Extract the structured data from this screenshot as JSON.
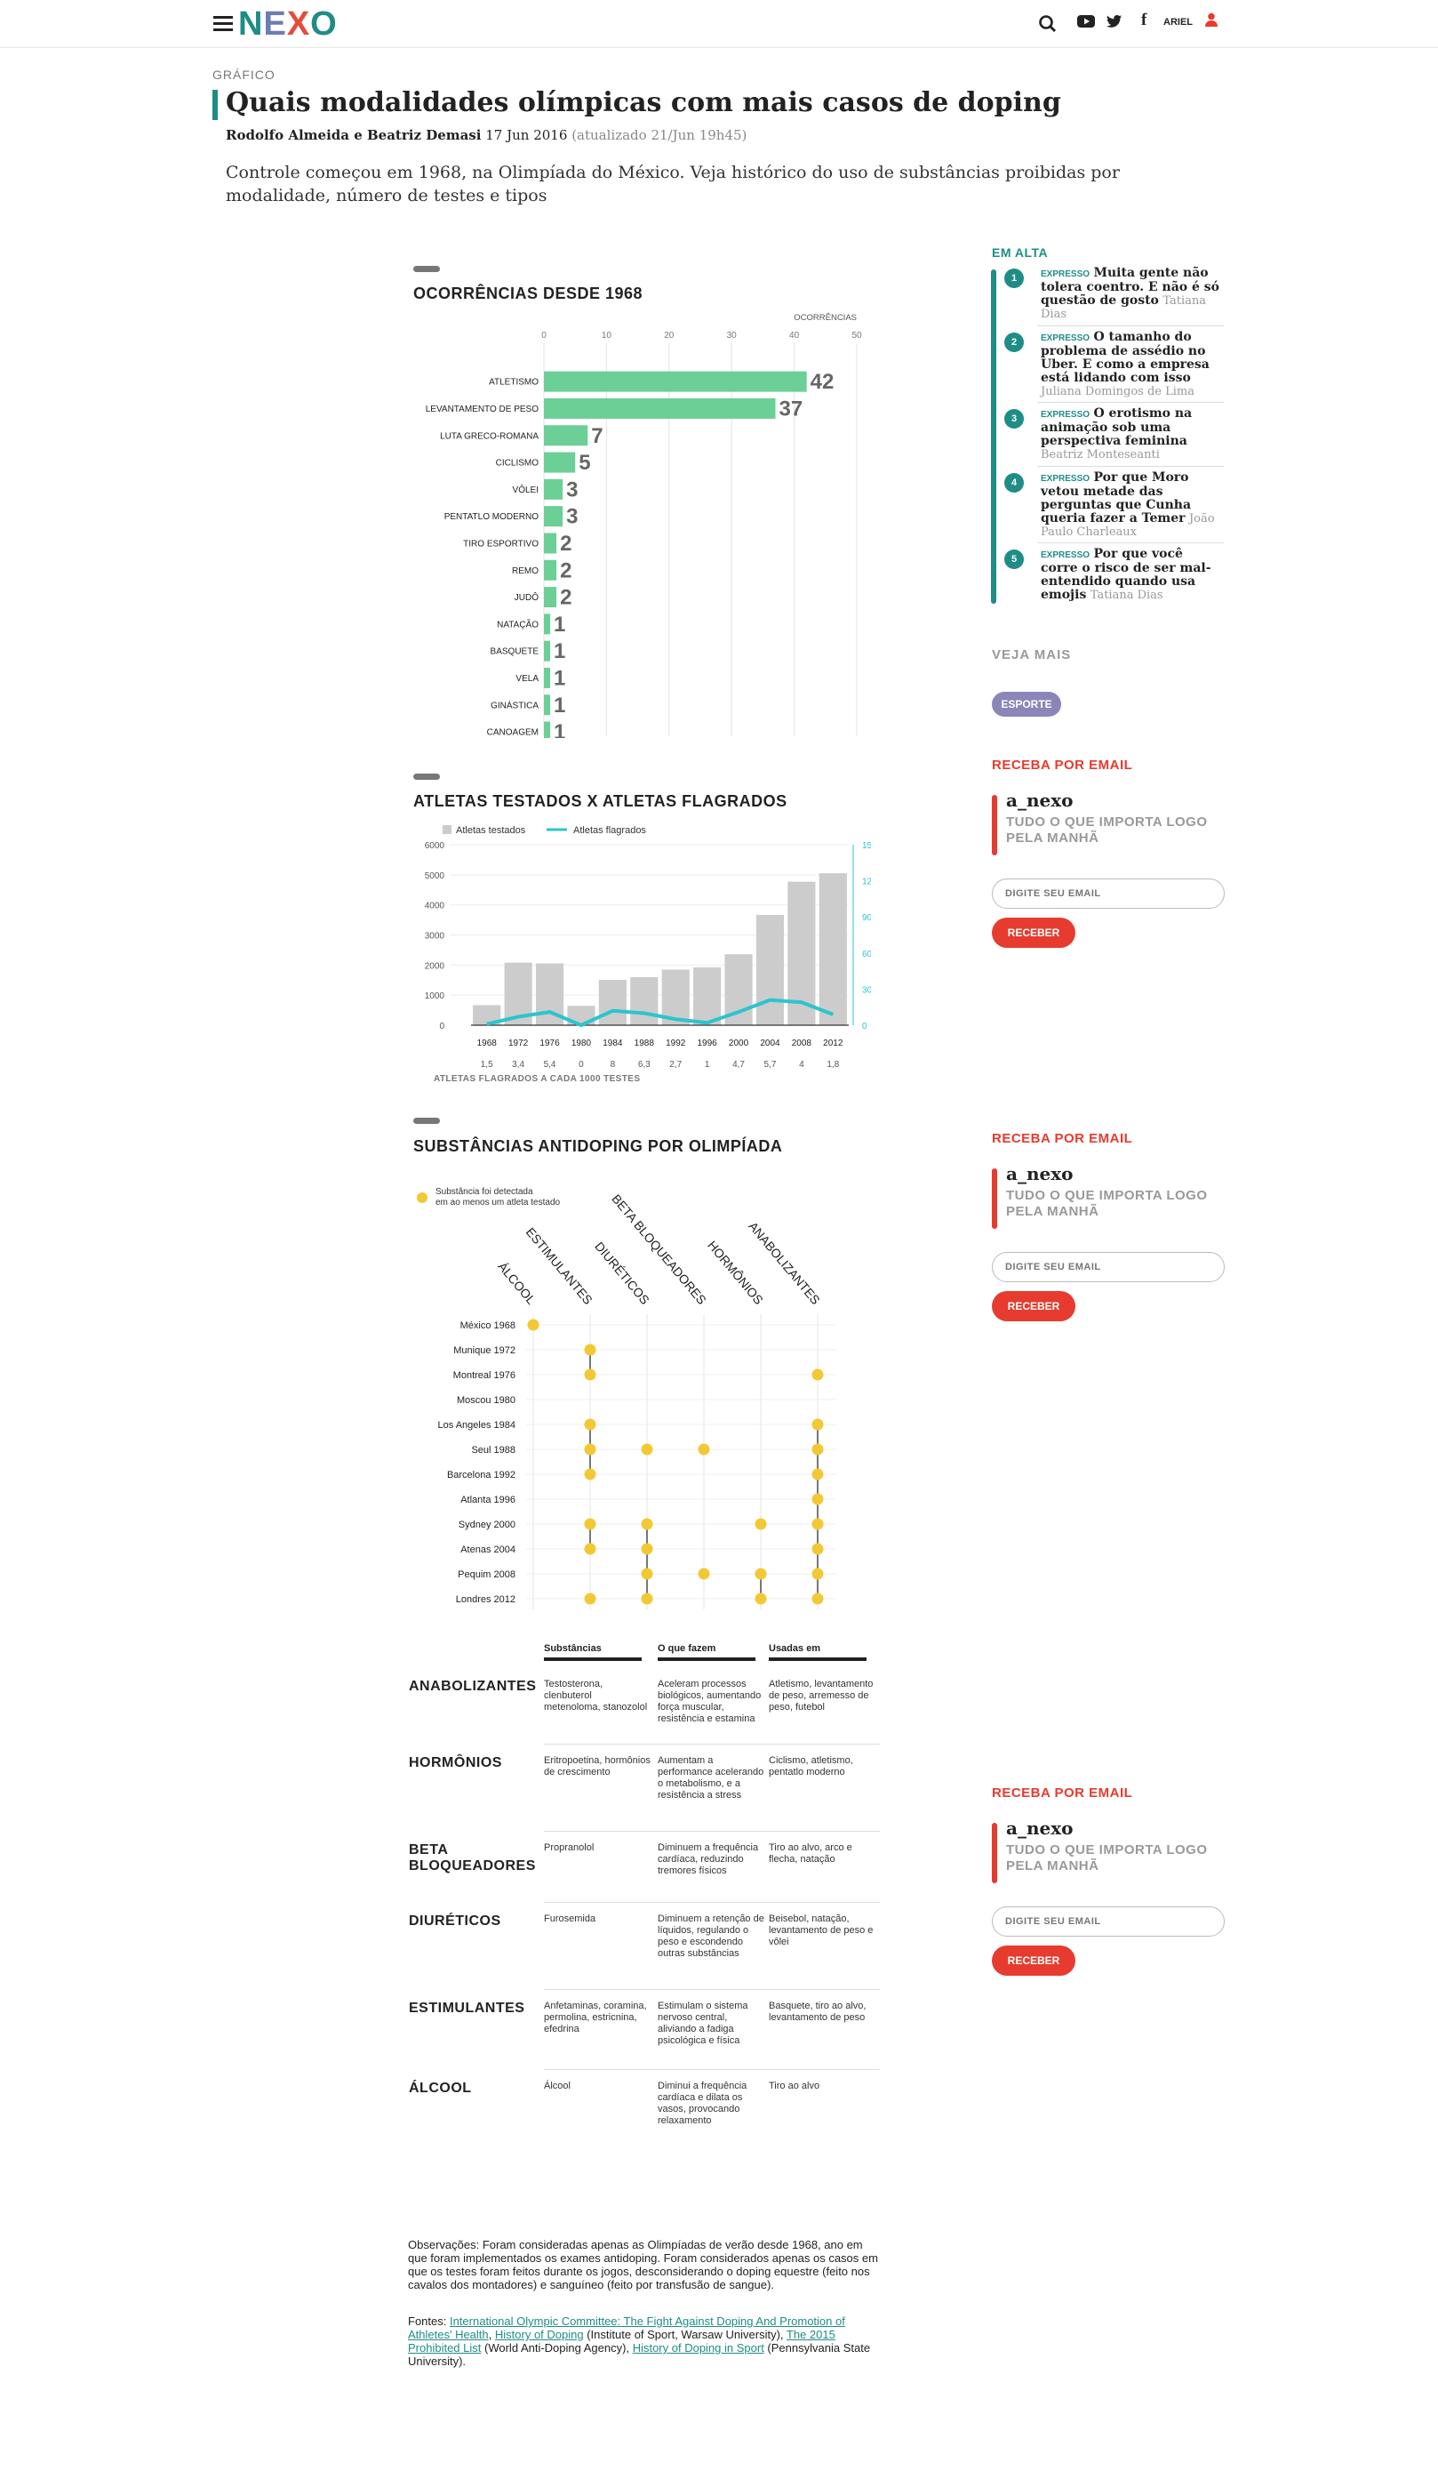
{
  "header": {
    "logo": "NEXO",
    "user_name": "ARIEL"
  },
  "article": {
    "kicker": "GRÁFICO",
    "title": "Quais modalidades olímpicas com mais casos de doping",
    "authors": "Rodolfo Almeida e Beatriz Demasi",
    "date": "17 Jun 2016",
    "updated": "(atualizado 21/Jun 19h45)",
    "lead": "Controle começou em 1968, na Olimpíada do México. Veja histórico do uso de substâncias proibidas por modalidade, número de testes e tipos"
  },
  "chart1": {
    "title": "OCORRÊNCIAS DESDE 1968",
    "axis_title": "OCORRÊNCIAS",
    "color": "#6ccf96",
    "chart_data": {
      "type": "bar",
      "title": "OCORRÊNCIAS DESDE 1968",
      "xlabel": "OCORRÊNCIAS",
      "xlim": [
        0,
        50
      ],
      "ticks": [
        0,
        10,
        20,
        30,
        40,
        50
      ],
      "categories": [
        "ATLETISMO",
        "LEVANTAMENTO DE PESO",
        "LUTA GRECO-ROMANA",
        "CICLISMO",
        "VÔLEI",
        "PENTATLO MODERNO",
        "TIRO ESPORTIVO",
        "REMO",
        "JUDÔ",
        "NATAÇÃO",
        "BASQUETE",
        "VELA",
        "GINÁSTICA",
        "CANOAGEM"
      ],
      "values": [
        42,
        37,
        7,
        5,
        3,
        3,
        2,
        2,
        2,
        1,
        1,
        1,
        1,
        1
      ]
    }
  },
  "chart2": {
    "title": "ATLETAS TESTADOS X ATLETAS FLAGRADOS",
    "legend_tested": "Atletas testados",
    "legend_flagged": "Atletas flagrados",
    "rate_label": "ATLETAS FLAGRADOS A CADA 1000 TESTES",
    "bar_color": "#cccccc",
    "line_color": "#2bc4cf",
    "chart_data": {
      "type": "bar",
      "categories": [
        "1968",
        "1972",
        "1976",
        "1980",
        "1984",
        "1988",
        "1992",
        "1996",
        "2000",
        "2004",
        "2008",
        "2012"
      ],
      "left_ticks": [
        0,
        1000,
        2000,
        3000,
        4000,
        5000,
        6000
      ],
      "right_ticks": [
        0,
        30,
        60,
        90,
        120,
        150
      ],
      "ylim_left": [
        0,
        6000
      ],
      "ylim_right": [
        0,
        150
      ],
      "series": [
        {
          "name": "Atletas testados",
          "values": [
            667,
            2079,
            2054,
            645,
            1507,
            1598,
            1848,
            1923,
            2359,
            3667,
            4770,
            5051
          ]
        },
        {
          "name": "Atletas flagrados",
          "values": [
            1,
            7,
            11,
            0,
            12,
            10,
            5,
            2,
            11,
            21,
            19,
            9
          ]
        }
      ],
      "rate": [
        "1,5",
        "3,4",
        "5,4",
        "0",
        "8",
        "6,3",
        "2,7",
        "1",
        "4,7",
        "5,7",
        "4",
        "1,8"
      ]
    }
  },
  "chart3": {
    "title": "SUBSTÂNCIAS ANTIDOPING POR OLIMPÍADA",
    "legend_text_1": "Substância foi detectada",
    "legend_text_2": "em ao menos um atleta testado",
    "dot_color": "#f2c935",
    "chart_data": {
      "type": "scatter",
      "columns": [
        "ÁLCOOL",
        "ESTIMULANTES",
        "DIURÉTICOS",
        "BETA BLOQUEADORES",
        "HORMÔNIOS",
        "ANABOLIZANTES"
      ],
      "rows": [
        "México 1968",
        "Munique 1972",
        "Montreal 1976",
        "Moscou 1980",
        "Los Angeles 1984",
        "Seul 1988",
        "Barcelona 1992",
        "Atlanta 1996",
        "Sydney 2000",
        "Atenas 2004",
        "Pequim 2008",
        "Londres 2012"
      ],
      "detected": [
        [
          0
        ],
        [
          1
        ],
        [
          1,
          5
        ],
        [],
        [
          1,
          5
        ],
        [
          1,
          2,
          3,
          5
        ],
        [
          1,
          5
        ],
        [
          5
        ],
        [
          1,
          2,
          4,
          5
        ],
        [
          1,
          2,
          5
        ],
        [
          2,
          3,
          4,
          5
        ],
        [
          1,
          2,
          4,
          5
        ]
      ]
    }
  },
  "table": {
    "headers": [
      "Substâncias",
      "O que fazem",
      "Usadas em"
    ],
    "rows": [
      {
        "name": "ANABOLIZANTES",
        "subst": "Testosterona, clenbuterol metenoloma, stanozolol",
        "what": "Aceleram processos biológicos, aumentando força muscular, resistência e estamina",
        "used": "Atletismo, levantamento de peso, arremesso de peso, futebol"
      },
      {
        "name": "HORMÔNIOS",
        "subst": "Eritropoetina, hormônios de crescimento",
        "what": "Aumentam a performance acelerando o metabolismo, e a resistência a stress",
        "used": "Ciclismo, atletismo, pentatlo moderno"
      },
      {
        "name": "BETA BLOQUEADORES",
        "subst": "Propranolol",
        "what": "Diminuem a frequência cardíaca, reduzindo tremores físicos",
        "used": "Tiro ao alvo, arco e flecha, natação"
      },
      {
        "name": "DIURÉTICOS",
        "subst": "Furosemida",
        "what": "Diminuem a retenção de líquidos, regulando o peso e escondendo outras substâncias",
        "used": "Beisebol, natação, levantamento de peso e vôlei"
      },
      {
        "name": "ESTIMULANTES",
        "subst": "Anfetaminas, coramina, permolina, estricnina, efedrina",
        "what": "Estimulam o sistema nervoso central, aliviando a fadiga psicológica e física",
        "used": "Basquete, tiro ao alvo, levantamento de peso"
      },
      {
        "name": "ÁLCOOL",
        "subst": "Álcool",
        "what": "Diminui a frequência cardíaca e dilata os vasos, provocando relaxamento",
        "used": "Tiro ao alvo"
      }
    ]
  },
  "notes": {
    "observations": "Observações: Foram consideradas apenas as Olimpíadas de verão desde 1968, ano em que foram implementados os exames antidoping. Foram considerados apenas os casos em que os testes foram feitos durante os jogos, desconsiderando o doping equestre (feito nos cavalos dos montadores) e sanguíneo (feito por transfusão de sangue).",
    "sources_prefix": "Fontes: ",
    "src1": "International Olympic Committee: The Fight Against Doping And Promotion of Athletes' Health",
    "sep1": ", ",
    "src2": "History of Doping",
    "src2_after": " (Institute of Sport, Warsaw University), ",
    "src3": "The 2015 Prohibited List",
    "src3_after": " (World Anti-Doping Agency), ",
    "src4": "History of Doping in Sport",
    "src4_after": " (Pennsylvania State University)."
  },
  "sidebar": {
    "em_alta_title": "EM ALTA",
    "em_alta": [
      {
        "num": "1",
        "tag": "EXPRESSO",
        "title": "Muita gente não tolera coentro. E não é só questão de gosto",
        "author": "Tatiana Dias"
      },
      {
        "num": "2",
        "tag": "EXPRESSO",
        "title": "O tamanho do problema de assédio no Uber. E como a empresa está lidando com isso",
        "author": "Juliana Domingos de Lima"
      },
      {
        "num": "3",
        "tag": "EXPRESSO",
        "title": "O erotismo na animação sob uma perspectiva feminina",
        "author": "Beatriz Monteseanti"
      },
      {
        "num": "4",
        "tag": "EXPRESSO",
        "title": "Por que Moro vetou metade das perguntas que Cunha queria fazer a Temer",
        "author": "João Paulo Charleaux"
      },
      {
        "num": "5",
        "tag": "EXPRESSO",
        "title": "Por que você corre o risco de ser mal-entendido quando usa emojis",
        "author": "Tatiana Dias"
      }
    ],
    "veja_mais": "VEJA MAIS",
    "esporte": "ESPORTE",
    "newsletter": {
      "title": "RECEBA POR EMAIL",
      "name": "a_nexo",
      "tagline_1": "TUDO O QUE IMPORTA LOGO",
      "tagline_2": "PELA MANHÃ",
      "placeholder": "DIGITE SEU EMAIL",
      "button": "RECEBER"
    }
  },
  "colors": {
    "brand": "#1e8d86",
    "red": "#e63b2e"
  }
}
